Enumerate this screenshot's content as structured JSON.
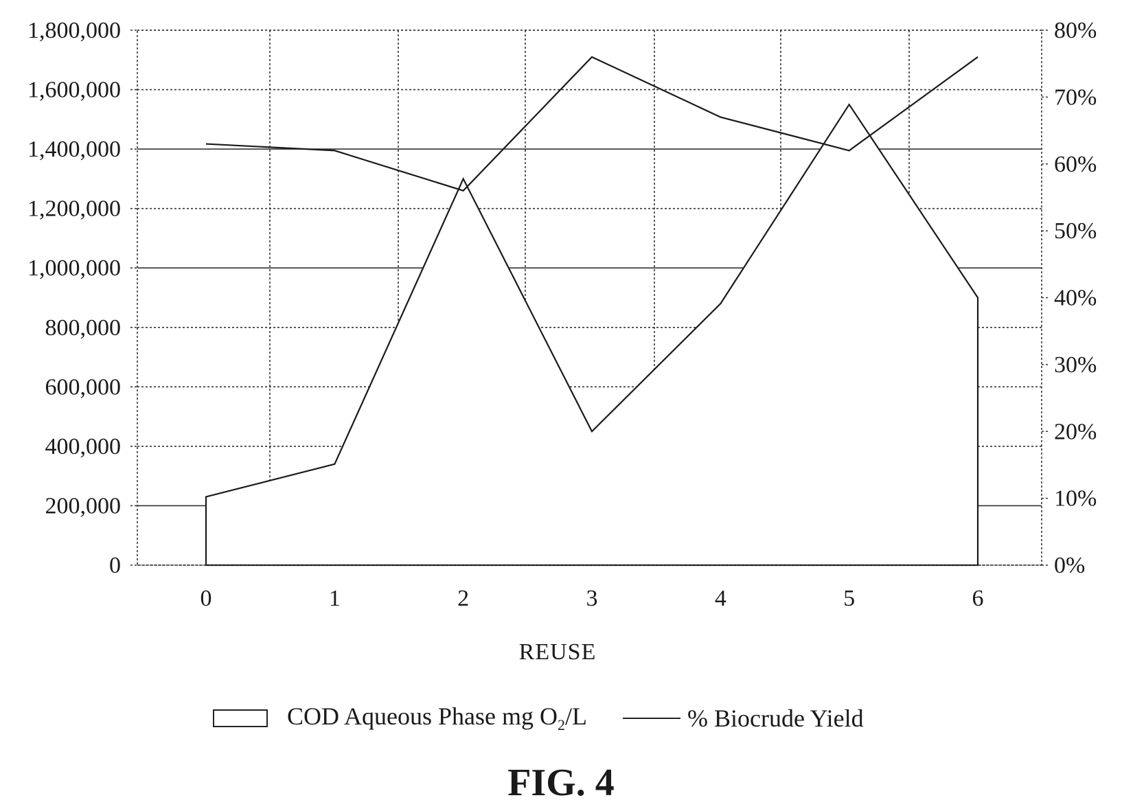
{
  "chart_data": {
    "type": "area+line",
    "xlabel": "REUSE",
    "categories": [
      "0",
      "1",
      "2",
      "3",
      "4",
      "5",
      "6"
    ],
    "y_left": {
      "ticks": [
        "0",
        "200,000",
        "400,000",
        "600,000",
        "800,000",
        "1,000,000",
        "1,200,000",
        "1,400,000",
        "1,600,000",
        "1,800,000"
      ],
      "ylim": [
        0,
        1800000
      ]
    },
    "y_right": {
      "ticks": [
        "0%",
        "10%",
        "20%",
        "30%",
        "40%",
        "50%",
        "60%",
        "70%",
        "80%"
      ],
      "ylim": [
        0,
        80
      ]
    },
    "series": [
      {
        "name": "COD Aqueous Phase mg O2/L",
        "type": "area",
        "axis": "left",
        "values": [
          230000,
          340000,
          1300000,
          450000,
          880000,
          1550000,
          900000
        ]
      },
      {
        "name": "% Biocrude Yield",
        "type": "line",
        "axis": "right",
        "values": [
          63,
          62,
          56,
          76,
          67,
          62,
          76
        ]
      }
    ],
    "grid": true,
    "legend_position": "bottom"
  },
  "legend": {
    "area_label_prefix": "COD Aqueous Phase mg O",
    "area_label_sub": "2",
    "area_label_suffix": "/L",
    "line_label": "% Biocrude Yield"
  },
  "caption": "FIG. 4"
}
